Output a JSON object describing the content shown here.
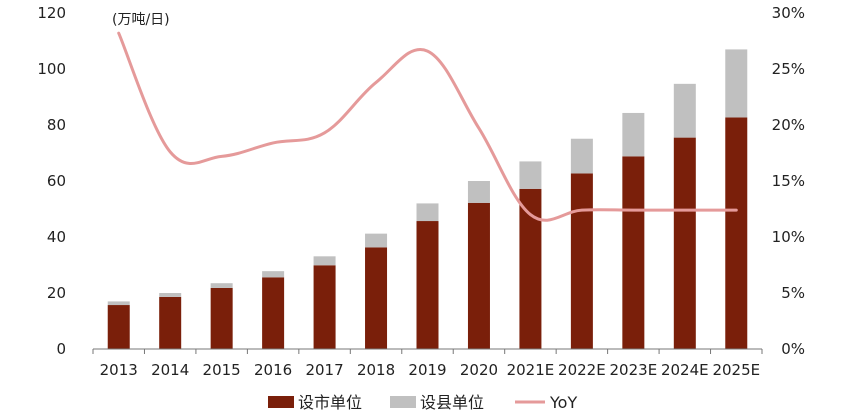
{
  "chart_data": {
    "type": "bar",
    "stacked": true,
    "unit_label": "(万吨/日)",
    "categories": [
      "2013",
      "2014",
      "2015",
      "2016",
      "2017",
      "2018",
      "2019",
      "2020",
      "2021E",
      "2022E",
      "2023E",
      "2024E",
      "2025E"
    ],
    "series": [
      {
        "name": "设市单位",
        "kind": "bar",
        "axis": "left",
        "color": "#7a1f0a",
        "values": [
          15.7,
          18.6,
          21.8,
          25.6,
          29.9,
          36.3,
          45.7,
          52.2,
          57.2,
          62.7,
          68.8,
          75.5,
          82.7
        ]
      },
      {
        "name": "设县单位",
        "kind": "bar",
        "axis": "left",
        "color": "#c0c0c0",
        "values": [
          1.3,
          1.4,
          1.7,
          2.2,
          3.2,
          4.9,
          6.3,
          7.8,
          9.8,
          12.4,
          15.5,
          19.2,
          24.3
        ]
      },
      {
        "name": "YoY",
        "kind": "line",
        "axis": "right",
        "color": "#e59a9a",
        "values": [
          28.2,
          17.6,
          17.2,
          18.4,
          19.3,
          23.8,
          26.6,
          19.7,
          12.0,
          12.4,
          12.4,
          12.4,
          12.4
        ]
      }
    ],
    "y_left": {
      "min": 0,
      "max": 120,
      "ticks": [
        "0",
        "20",
        "40",
        "60",
        "80",
        "100",
        "120"
      ]
    },
    "y_right": {
      "min": 0,
      "max": 30,
      "ticks": [
        "0%",
        "5%",
        "10%",
        "15%",
        "20%",
        "25%",
        "30%"
      ]
    },
    "legend_position": "bottom",
    "grid": false
  }
}
